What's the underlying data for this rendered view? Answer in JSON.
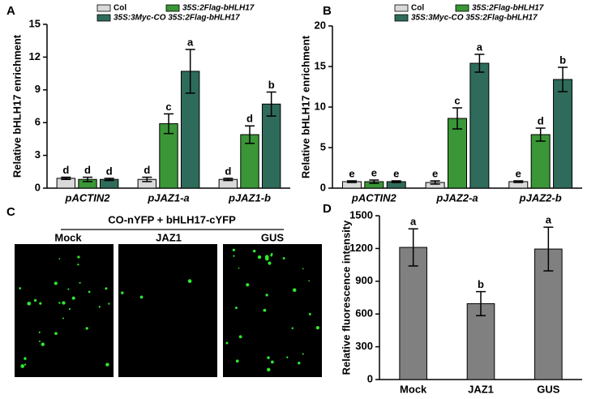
{
  "panel_labels": [
    "A",
    "B",
    "C",
    "D"
  ],
  "micrograph": {
    "title": "CO-nYFP + bHLH17-cYFP",
    "labels": [
      "Mock",
      "JAZ1",
      "GUS"
    ]
  },
  "chart_data": [
    {
      "type": "bar",
      "ylabel": "Relative bHLH17 enrichment",
      "categories": [
        "pACTIN2",
        "pJAZ1-a",
        "pJAZ1-b"
      ],
      "ylim": [
        0,
        15
      ],
      "yticks": [
        0,
        3,
        6,
        9,
        12,
        15
      ],
      "series": [
        {
          "name": "Col",
          "color": "#d9d9d9",
          "values": [
            0.9,
            0.8,
            0.8
          ],
          "errors": [
            0.1,
            0.2,
            0.1
          ],
          "significance": [
            "d",
            "d",
            "d"
          ]
        },
        {
          "name": "35S:2Flag-bHLH17",
          "color": "#3a9636",
          "values": [
            0.8,
            5.9,
            4.9
          ],
          "errors": [
            0.2,
            0.9,
            0.8
          ],
          "significance": [
            "d",
            "c",
            "d"
          ]
        },
        {
          "name": "35S:3Myc-CO 35S:2Flag-bHLH17",
          "color": "#2f6b5b",
          "values": [
            0.8,
            10.7,
            7.7
          ],
          "errors": [
            0.1,
            2.0,
            1.1
          ],
          "significance": [
            "d",
            "a",
            "b"
          ]
        }
      ]
    },
    {
      "type": "bar",
      "ylabel": "Relative bHLH17 enrichment",
      "categories": [
        "pACTIN2",
        "pJAZ2-a",
        "pJAZ2-b"
      ],
      "ylim": [
        0,
        20
      ],
      "yticks": [
        0,
        5,
        10,
        15,
        20
      ],
      "series": [
        {
          "name": "Col",
          "color": "#d9d9d9",
          "values": [
            0.8,
            0.7,
            0.8
          ],
          "errors": [
            0.1,
            0.2,
            0.1
          ],
          "significance": [
            "e",
            "e",
            "e"
          ]
        },
        {
          "name": "35S:2Flag-bHLH17",
          "color": "#3a9636",
          "values": [
            0.8,
            8.6,
            6.6
          ],
          "errors": [
            0.2,
            1.3,
            0.8
          ],
          "significance": [
            "e",
            "c",
            "d"
          ]
        },
        {
          "name": "35S:3Myc-CO 35S:2Flag-bHLH17",
          "color": "#2f6b5b",
          "values": [
            0.8,
            15.4,
            13.4
          ],
          "errors": [
            0.1,
            1.1,
            1.5
          ],
          "significance": [
            "e",
            "a",
            "b"
          ]
        }
      ]
    },
    {
      "type": "bar",
      "ylabel": "Relative fluorescence intensity",
      "categories": [
        "Mock",
        "JAZ1",
        "GUS"
      ],
      "ylim": [
        0,
        1500
      ],
      "yticks": [
        0,
        300,
        600,
        900,
        1200,
        1500
      ],
      "series": [
        {
          "color": "#808080",
          "values": [
            1210,
            695,
            1195
          ],
          "errors": [
            170,
            110,
            200
          ],
          "significance": [
            "a",
            "b",
            "a"
          ]
        }
      ]
    }
  ]
}
